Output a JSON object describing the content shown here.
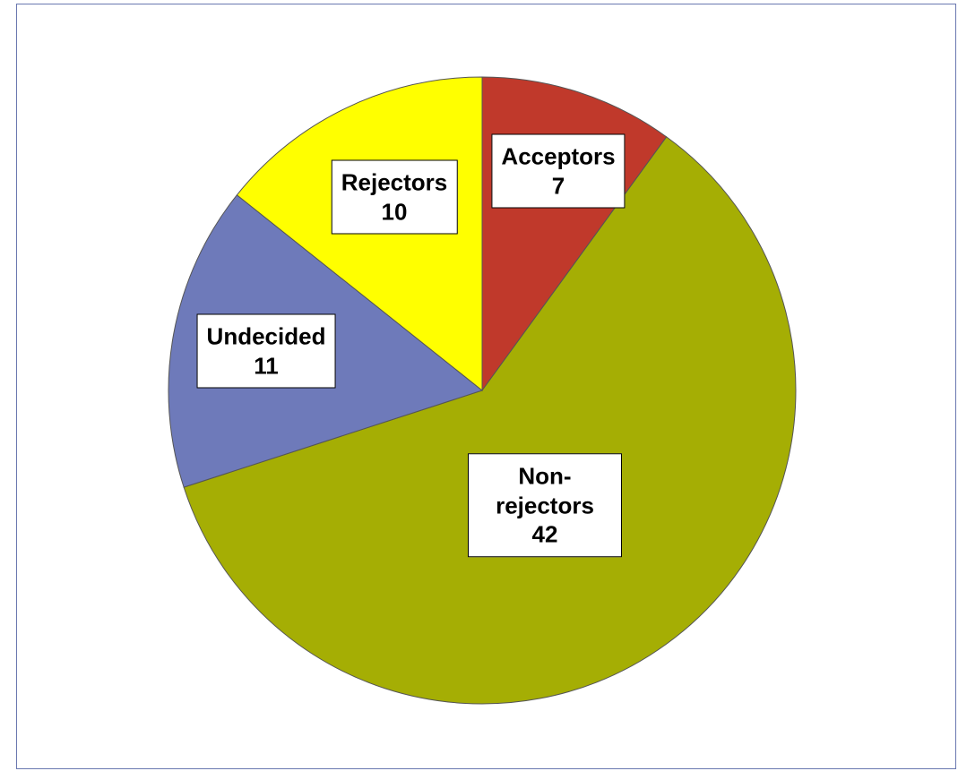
{
  "chart_data": {
    "type": "pie",
    "categories": [
      "Acceptors",
      "Non-rejectors",
      "Undecided",
      "Rejectors"
    ],
    "values": [
      7,
      42,
      11,
      10
    ],
    "colors": [
      "#c0392b",
      "#a5ae04",
      "#6e7aba",
      "#ffff00"
    ]
  }
}
